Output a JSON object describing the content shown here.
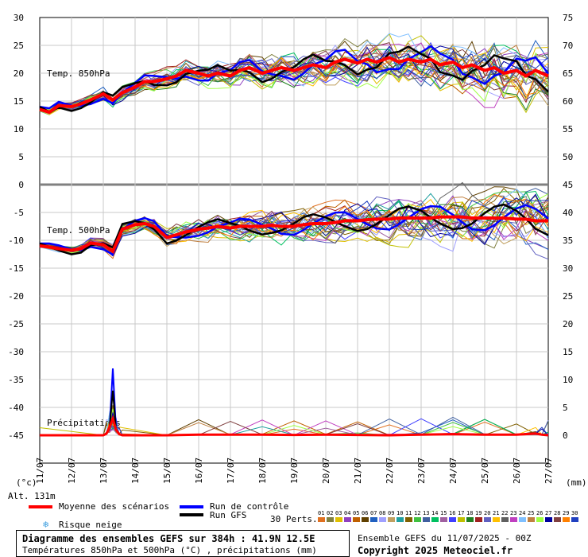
{
  "chart_data": {
    "type": "line",
    "dates": [
      "11/07",
      "12/07",
      "13/07",
      "14/07",
      "15/07",
      "16/07",
      "17/07",
      "18/07",
      "19/07",
      "20/07",
      "21/07",
      "22/07",
      "23/07",
      "24/07",
      "25/07",
      "26/07",
      "27/07"
    ],
    "left_axis_ticks": [
      30,
      25,
      20,
      15,
      10,
      5,
      0,
      -5,
      -10,
      -15,
      -20,
      -25,
      -30,
      -35,
      -40,
      -45
    ],
    "right_axis_ticks": [
      75,
      70,
      65,
      60,
      55,
      50,
      45,
      40,
      35,
      30,
      25,
      20,
      15,
      10,
      5,
      0
    ],
    "left_unit": "(°c)",
    "right_unit": "(mm)",
    "panel_labels": {
      "t850": "Temp. 850hPa",
      "t500": "Temp. 500hPa",
      "precip": "Précipitations"
    },
    "altitude": "Alt. 131m",
    "t850_mean": [
      [
        0,
        13.5
      ],
      [
        0.3,
        13
      ],
      [
        0.6,
        14.2
      ],
      [
        1,
        14
      ],
      [
        1.3,
        14.5
      ],
      [
        1.6,
        15.2
      ],
      [
        2,
        16.3
      ],
      [
        2.3,
        15.2
      ],
      [
        2.6,
        16.5
      ],
      [
        3,
        17.5
      ],
      [
        3.3,
        18.5
      ],
      [
        3.6,
        18.5
      ],
      [
        4,
        19
      ],
      [
        4.3,
        19.5
      ],
      [
        4.6,
        20.5
      ],
      [
        5,
        20
      ],
      [
        5.3,
        19.5
      ],
      [
        5.6,
        20
      ],
      [
        6,
        19.5
      ],
      [
        6.3,
        20.5
      ],
      [
        6.6,
        21
      ],
      [
        7,
        20
      ],
      [
        7.3,
        20.5
      ],
      [
        7.6,
        21
      ],
      [
        8,
        20.5
      ],
      [
        8.3,
        21
      ],
      [
        8.6,
        21.5
      ],
      [
        9,
        21
      ],
      [
        9.3,
        22
      ],
      [
        9.6,
        22.5
      ],
      [
        10,
        21.8
      ],
      [
        10.3,
        22.5
      ],
      [
        10.6,
        22
      ],
      [
        11,
        22.8
      ],
      [
        11.3,
        22
      ],
      [
        11.6,
        22.5
      ],
      [
        12,
        22
      ],
      [
        12.3,
        22.5
      ],
      [
        12.6,
        21.5
      ],
      [
        13,
        22
      ],
      [
        13.3,
        21
      ],
      [
        13.6,
        21.5
      ],
      [
        14,
        20.5
      ],
      [
        14.3,
        21
      ],
      [
        14.6,
        20
      ],
      [
        15,
        20.5
      ],
      [
        15.3,
        19.5
      ],
      [
        15.6,
        20.5
      ],
      [
        16,
        19.5
      ]
    ],
    "t500_mean": [
      [
        0,
        -11
      ],
      [
        0.3,
        -11.2
      ],
      [
        0.6,
        -11.5
      ],
      [
        1,
        -11.8
      ],
      [
        1.3,
        -11.5
      ],
      [
        1.6,
        -10.5
      ],
      [
        2,
        -10.8
      ],
      [
        2.3,
        -12
      ],
      [
        2.6,
        -8
      ],
      [
        3,
        -7.2
      ],
      [
        3.3,
        -7
      ],
      [
        3.6,
        -7.5
      ],
      [
        4,
        -9.5
      ],
      [
        4.3,
        -9
      ],
      [
        4.6,
        -8.5
      ],
      [
        5,
        -8
      ],
      [
        5.3,
        -7.8
      ],
      [
        5.6,
        -7.5
      ],
      [
        6,
        -7.8
      ],
      [
        6.3,
        -7.5
      ],
      [
        6.6,
        -7.5
      ],
      [
        7,
        -7.5
      ],
      [
        7.3,
        -7.3
      ],
      [
        7.6,
        -7.5
      ],
      [
        8,
        -7.5
      ],
      [
        8.3,
        -7.2
      ],
      [
        8.6,
        -7
      ],
      [
        9,
        -7
      ],
      [
        9.3,
        -6.8
      ],
      [
        9.6,
        -6.5
      ],
      [
        10,
        -6.5
      ],
      [
        10.3,
        -6.3
      ],
      [
        10.6,
        -6.2
      ],
      [
        11,
        -6.2
      ],
      [
        11.3,
        -6
      ],
      [
        11.6,
        -6
      ],
      [
        12,
        -6
      ],
      [
        12.3,
        -6
      ],
      [
        12.6,
        -5.8
      ],
      [
        13,
        -5.8
      ],
      [
        13.3,
        -5.8
      ],
      [
        13.6,
        -6
      ],
      [
        14,
        -6
      ],
      [
        14.3,
        -6
      ],
      [
        14.6,
        -6
      ],
      [
        15,
        -6.2
      ],
      [
        15.3,
        -6.2
      ],
      [
        15.6,
        -6.5
      ],
      [
        16,
        -6.5
      ]
    ],
    "precip_mean": [
      [
        0,
        0
      ],
      [
        2,
        0
      ],
      [
        2.1,
        0.3
      ],
      [
        2.2,
        1.5
      ],
      [
        2.3,
        3
      ],
      [
        2.4,
        1
      ],
      [
        2.5,
        0.2
      ],
      [
        2.6,
        0
      ],
      [
        4,
        0
      ],
      [
        5,
        0.1
      ],
      [
        6,
        0.1
      ],
      [
        7,
        0.1
      ],
      [
        8,
        0.05
      ],
      [
        9,
        0.1
      ],
      [
        10,
        0.05
      ],
      [
        11,
        0
      ],
      [
        12,
        0.1
      ],
      [
        13,
        0.2
      ],
      [
        14,
        0.1
      ],
      [
        15,
        0.1
      ],
      [
        15.6,
        0.3
      ],
      [
        15.8,
        0.1
      ],
      [
        16,
        0
      ]
    ],
    "control_run_peak_mm": 12,
    "gfs_run_peak_mm": 8
  },
  "legend": {
    "mean": "Moyenne des scénarios",
    "control": "Run de contrôle",
    "gfs": "Run GFS",
    "snow": "Risque neige",
    "perts": "30 Perts.",
    "pert_labels": [
      "01",
      "02",
      "03",
      "04",
      "05",
      "06",
      "07",
      "08",
      "09",
      "10",
      "11",
      "12",
      "13",
      "14",
      "15",
      "16",
      "17",
      "18",
      "19",
      "20",
      "21",
      "22",
      "23",
      "24",
      "25",
      "26",
      "27",
      "28",
      "29",
      "30"
    ],
    "pert_colors": [
      "#e07020",
      "#808040",
      "#e0c000",
      "#9040c0",
      "#c06000",
      "#604000",
      "#2060c0",
      "#a0a0ff",
      "#c0a060",
      "#20a0a0",
      "#806000",
      "#40c040",
      "#4060a0",
      "#00c060",
      "#a060a0",
      "#4040ff",
      "#c0c000",
      "#208020",
      "#a02020",
      "#6060c0",
      "#ffc000",
      "#606060",
      "#c040c0",
      "#80c0ff",
      "#c08040",
      "#a0ff40",
      "#0000a0",
      "#804040",
      "#ff8000",
      "#2040c0"
    ]
  },
  "footer": {
    "title": "Diagramme des ensembles GEFS sur 384h : 41.9N 12.5E",
    "subtitle": "Températures 850hPa et 500hPa (°C) , précipitations (mm)",
    "run": "Ensemble GEFS du 11/07/2025 - 00Z",
    "copyright": "Copyright 2025 Meteociel.fr"
  },
  "colors": {
    "mean": "#ff0000",
    "control": "#0000ff",
    "gfs": "#000000",
    "grid": "#c8c8c8",
    "separator": "#808080"
  }
}
